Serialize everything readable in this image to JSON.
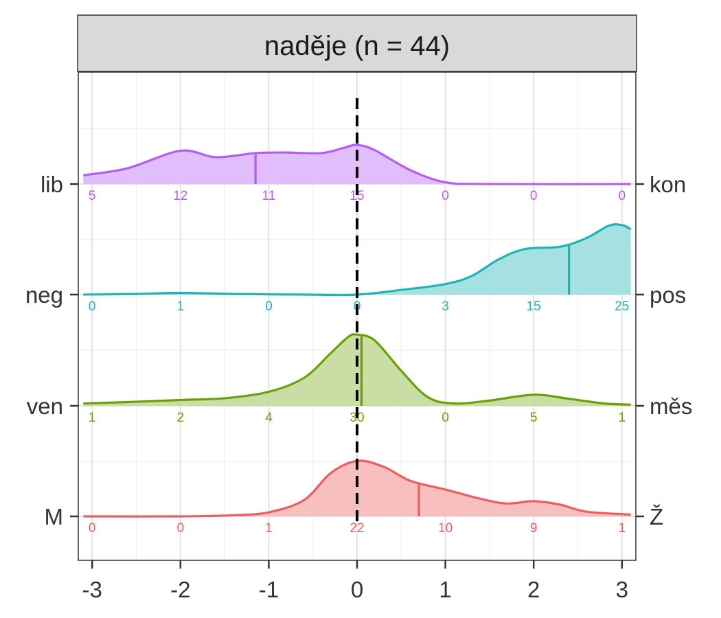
{
  "chart_data": {
    "type": "ridgeline-density",
    "facet_title": "naděje (n = 44)",
    "x_ticks": [
      -3,
      -2,
      -1,
      0,
      1,
      2,
      3
    ],
    "x_tick_labels": [
      "-3",
      "-2",
      "-1",
      "0",
      "1",
      "2",
      "3"
    ],
    "xlim": [
      -3.1,
      3.1
    ],
    "reference_line_x": 0,
    "series": [
      {
        "name": "lib-kon",
        "left_label": "lib",
        "right_label": "kon",
        "color": "#b35cf6",
        "fill": "#dfbafb",
        "mean": -1.15,
        "counts": [
          5,
          12,
          11,
          15,
          0,
          0,
          0
        ],
        "density": [
          [
            -3.1,
            0.15
          ],
          [
            -2.6,
            0.27
          ],
          [
            -2.0,
            0.57
          ],
          [
            -1.6,
            0.46
          ],
          [
            -1.15,
            0.53
          ],
          [
            -0.8,
            0.54
          ],
          [
            -0.4,
            0.53
          ],
          [
            -0.15,
            0.62
          ],
          [
            0.0,
            0.67
          ],
          [
            0.2,
            0.58
          ],
          [
            0.6,
            0.24
          ],
          [
            1.0,
            0.03
          ],
          [
            1.5,
            0.0
          ],
          [
            3.1,
            0.0
          ]
        ]
      },
      {
        "name": "neg-pos",
        "left_label": "neg",
        "right_label": "pos",
        "color": "#1bb5b5",
        "fill": "#a1dfdf",
        "mean": 2.4,
        "counts": [
          0,
          1,
          0,
          0,
          3,
          15,
          25
        ],
        "density": [
          [
            -3.1,
            0.0
          ],
          [
            -2.5,
            0.01
          ],
          [
            -2.0,
            0.03
          ],
          [
            -1.4,
            0.01
          ],
          [
            -0.6,
            0.0
          ],
          [
            0.0,
            0.0
          ],
          [
            0.5,
            0.08
          ],
          [
            1.0,
            0.18
          ],
          [
            1.3,
            0.32
          ],
          [
            1.6,
            0.6
          ],
          [
            1.9,
            0.78
          ],
          [
            2.3,
            0.82
          ],
          [
            2.6,
            0.97
          ],
          [
            2.85,
            1.18
          ],
          [
            3.0,
            1.19
          ],
          [
            3.1,
            1.12
          ]
        ]
      },
      {
        "name": "ven-měs",
        "left_label": "ven",
        "right_label": "měs",
        "color": "#69a200",
        "fill": "#c6dca0",
        "mean": 0.05,
        "counts": [
          1,
          2,
          4,
          30,
          0,
          5,
          1
        ],
        "density": [
          [
            -3.1,
            0.04
          ],
          [
            -2.5,
            0.07
          ],
          [
            -2.0,
            0.1
          ],
          [
            -1.5,
            0.13
          ],
          [
            -1.0,
            0.24
          ],
          [
            -0.6,
            0.48
          ],
          [
            -0.3,
            0.9
          ],
          [
            -0.1,
            1.18
          ],
          [
            0.0,
            1.22
          ],
          [
            0.2,
            1.12
          ],
          [
            0.5,
            0.6
          ],
          [
            0.8,
            0.15
          ],
          [
            1.1,
            0.04
          ],
          [
            1.5,
            0.09
          ],
          [
            2.0,
            0.19
          ],
          [
            2.4,
            0.12
          ],
          [
            2.8,
            0.04
          ],
          [
            3.1,
            0.02
          ]
        ]
      },
      {
        "name": "M-Ž",
        "left_label": "M",
        "right_label": "Ž",
        "color": "#f05c5c",
        "fill": "#f8bcbc",
        "mean": 0.7,
        "counts": [
          0,
          0,
          1,
          22,
          10,
          9,
          1
        ],
        "density": [
          [
            -3.1,
            0.0
          ],
          [
            -2.0,
            0.0
          ],
          [
            -1.4,
            0.02
          ],
          [
            -1.0,
            0.07
          ],
          [
            -0.6,
            0.28
          ],
          [
            -0.3,
            0.74
          ],
          [
            0.0,
            0.95
          ],
          [
            0.3,
            0.85
          ],
          [
            0.6,
            0.61
          ],
          [
            1.0,
            0.46
          ],
          [
            1.4,
            0.3
          ],
          [
            1.7,
            0.22
          ],
          [
            2.0,
            0.26
          ],
          [
            2.3,
            0.2
          ],
          [
            2.6,
            0.08
          ],
          [
            3.1,
            0.03
          ]
        ]
      }
    ]
  }
}
